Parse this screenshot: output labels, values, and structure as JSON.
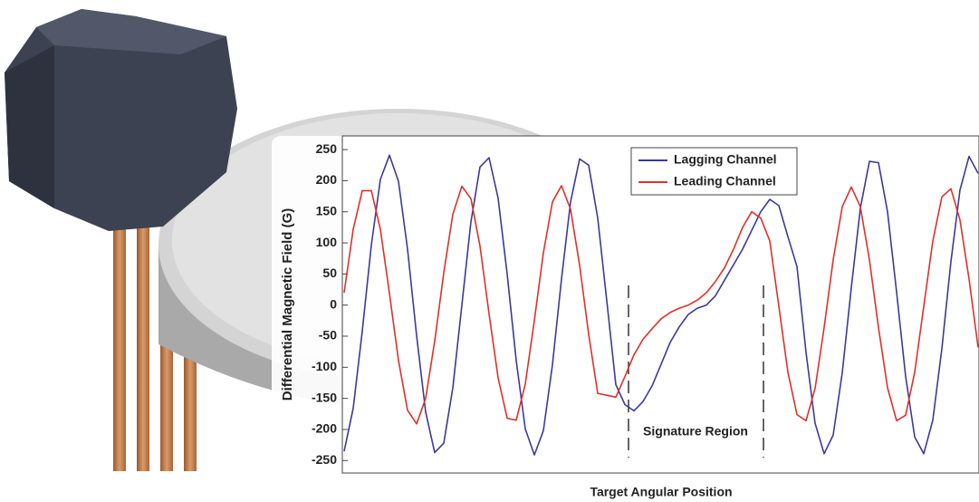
{
  "chart_data": {
    "type": "line",
    "y_label": "Differential Magnetic Field (G)",
    "x_label": "Target Angular Position",
    "annotation": "Signature Region",
    "categories": [
      null,
      null,
      null,
      null,
      null,
      null,
      null,
      null,
      null,
      null,
      null,
      null,
      null,
      null,
      null,
      null,
      null,
      null,
      null,
      null,
      null,
      null,
      null,
      null,
      null,
      null,
      null,
      null,
      null,
      null,
      null,
      null,
      null,
      null,
      null,
      null,
      null,
      null,
      null,
      null,
      null,
      null,
      null,
      null,
      null,
      null,
      null,
      null,
      null,
      null,
      null,
      null,
      null,
      null,
      null,
      null,
      null,
      null,
      null,
      null,
      null,
      null,
      null,
      null,
      null,
      null,
      null,
      null,
      null,
      null,
      null
    ],
    "series": [
      {
        "name": "Lagging Channel",
        "color": "#3a3a9a",
        "values": [
          -235,
          -166,
          -42,
          96,
          202,
          241,
          199,
          90,
          -49,
          -172,
          -237,
          -222,
          -133,
          0,
          134,
          222,
          237,
          172,
          50,
          -89,
          -199,
          -241,
          -202,
          -96,
          42,
          166,
          235,
          225,
          140,
          7,
          -128,
          -160,
          -170,
          -155,
          -130,
          -95,
          -60,
          -35,
          -15,
          -5,
          0,
          15,
          40,
          65,
          90,
          120,
          150,
          170,
          160,
          110,
          62,
          -76,
          -190,
          -239,
          -209,
          -109,
          28,
          156,
          231,
          229,
          150,
          21,
          -115,
          -212,
          -239,
          -185,
          -70,
          70,
          185,
          239,
          212
        ]
      },
      {
        "name": "Leading Channel",
        "color": "#e0302a",
        "values": [
          20,
          122,
          184,
          184,
          122,
          19,
          -89,
          -169,
          -191,
          -150,
          -58,
          52,
          146,
          191,
          171,
          95,
          -14,
          -117,
          -182,
          -185,
          -127,
          -25,
          84,
          166,
          192,
          154,
          64,
          -47,
          -142,
          -145,
          -148,
          -115,
          -80,
          -55,
          -38,
          -22,
          -12,
          -5,
          0,
          8,
          20,
          38,
          60,
          90,
          125,
          150,
          140,
          103,
          -2,
          -108,
          -176,
          -186,
          -134,
          -36,
          73,
          158,
          190,
          158,
          73,
          -36,
          -133,
          -186,
          -177,
          -108,
          -2,
          103,
          174,
          187,
          137,
          42,
          -68
        ]
      }
    ],
    "ylim": [
      -270,
      272
    ],
    "yticks": [
      250,
      200,
      150,
      100,
      50,
      0,
      -50,
      -100,
      -150,
      -200,
      -250
    ]
  }
}
